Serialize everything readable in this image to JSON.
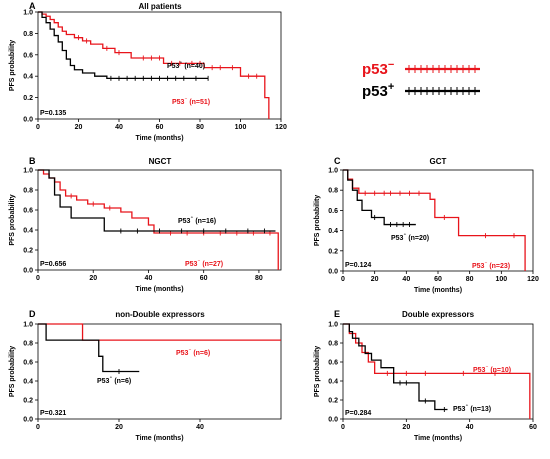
{
  "colors": {
    "neg": "#e8141b",
    "pos": "#000000",
    "axis": "#000000"
  },
  "legend": [
    {
      "label": "p53",
      "sup": "−",
      "color": "#e8141b"
    },
    {
      "label": "p53",
      "sup": "+",
      "color": "#000000"
    }
  ],
  "chart_data": [
    {
      "type": "line",
      "letter": "A",
      "title": "All patients",
      "xlabel": "Time (months)",
      "ylabel": "PFS probability",
      "xlim": [
        0,
        120
      ],
      "ylim": [
        0,
        1
      ],
      "xticks": [
        0,
        20,
        40,
        60,
        80,
        100,
        120
      ],
      "yticks": [
        0.0,
        0.2,
        0.4,
        0.6,
        0.8,
        1.0
      ],
      "pvalue": "P=0.135",
      "series": [
        {
          "name": "P53⁻ (n=51)",
          "sign": "−",
          "color": "#e8141b",
          "x": [
            0,
            2,
            4,
            6,
            8,
            10,
            12,
            14,
            18,
            22,
            26,
            32,
            38,
            46,
            62,
            82,
            100,
            112,
            114
          ],
          "y": [
            1.0,
            0.98,
            0.96,
            0.93,
            0.9,
            0.86,
            0.82,
            0.79,
            0.76,
            0.73,
            0.7,
            0.66,
            0.62,
            0.57,
            0.52,
            0.48,
            0.4,
            0.2,
            0.0
          ],
          "censor": [
            20,
            24,
            34,
            40,
            52,
            56,
            60,
            66,
            70,
            76,
            80,
            86,
            90,
            96,
            104,
            108
          ]
        },
        {
          "name": "P53⁺ (n=40)",
          "sign": "+",
          "color": "#000000",
          "x": [
            0,
            2,
            4,
            6,
            8,
            10,
            12,
            14,
            16,
            18,
            22,
            28,
            34
          ],
          "y": [
            1.0,
            0.95,
            0.9,
            0.84,
            0.78,
            0.72,
            0.64,
            0.56,
            0.5,
            0.46,
            0.43,
            0.4,
            0.38
          ],
          "censor": [
            36,
            40,
            44,
            48,
            52,
            56,
            60,
            64,
            68,
            72,
            78,
            84
          ],
          "end": 84
        }
      ]
    },
    {
      "type": "line",
      "letter": "B",
      "title": "NGCT",
      "xlabel": "Time (months)",
      "ylabel": "PFS probability",
      "xlim": [
        0,
        88
      ],
      "ylim": [
        0,
        1
      ],
      "xticks": [
        0,
        20,
        40,
        60,
        80
      ],
      "yticks": [
        0.0,
        0.2,
        0.4,
        0.6,
        0.8,
        1.0
      ],
      "pvalue": "P=0.656",
      "series": [
        {
          "name": "P53⁻ (n=27)",
          "sign": "−",
          "color": "#e8141b",
          "x": [
            0,
            2,
            4,
            6,
            8,
            10,
            14,
            18,
            24,
            30,
            34,
            40,
            42,
            87
          ],
          "y": [
            1.0,
            0.96,
            0.92,
            0.88,
            0.8,
            0.74,
            0.7,
            0.66,
            0.62,
            0.58,
            0.52,
            0.45,
            0.37,
            0.0
          ],
          "censor": [
            12,
            20,
            26,
            48,
            54,
            60,
            66,
            72,
            78,
            84
          ]
        },
        {
          "name": "P53⁺ (n=16)",
          "sign": "+",
          "color": "#000000",
          "x": [
            0,
            4,
            6,
            8,
            12,
            24
          ],
          "y": [
            1.0,
            0.92,
            0.75,
            0.63,
            0.52,
            0.39
          ],
          "censor": [
            30,
            36,
            44,
            52,
            60,
            68,
            76,
            82
          ],
          "end": 86
        }
      ]
    },
    {
      "type": "line",
      "letter": "C",
      "title": "GCT",
      "xlabel": "Time (months)",
      "ylabel": "PFS probability",
      "xlim": [
        0,
        120
      ],
      "ylim": [
        0,
        1
      ],
      "xticks": [
        0,
        20,
        40,
        60,
        80,
        100,
        120
      ],
      "yticks": [
        0.0,
        0.2,
        0.4,
        0.6,
        0.8,
        1.0
      ],
      "pvalue": "P=0.124",
      "series": [
        {
          "name": "P53⁻ (n=23)",
          "sign": "−",
          "color": "#e8141b",
          "x": [
            0,
            3,
            6,
            10,
            55,
            58,
            73,
            115
          ],
          "y": [
            1.0,
            0.91,
            0.82,
            0.77,
            0.71,
            0.53,
            0.35,
            0.0
          ],
          "censor": [
            14,
            20,
            26,
            30,
            36,
            42,
            48,
            64,
            90,
            108
          ]
        },
        {
          "name": "P53⁺ (n=20)",
          "sign": "+",
          "color": "#000000",
          "x": [
            0,
            3,
            6,
            9,
            12,
            18,
            26
          ],
          "y": [
            1.0,
            0.9,
            0.8,
            0.7,
            0.6,
            0.53,
            0.46
          ],
          "censor": [
            20,
            30,
            34,
            38,
            42
          ],
          "end": 46
        }
      ]
    },
    {
      "type": "line",
      "letter": "D",
      "title": "non-Double expressors",
      "xlabel": "Time (months)",
      "ylabel": "PFS probability",
      "xlim": [
        0,
        60
      ],
      "ylim": [
        0,
        1
      ],
      "xticks": [
        0,
        20,
        40
      ],
      "yticks": [
        0.0,
        0.2,
        0.4,
        0.6,
        0.8,
        1.0
      ],
      "pvalue": "P=0.321",
      "series": [
        {
          "name": "P53⁻ (n=6)",
          "sign": "−",
          "color": "#e8141b",
          "x": [
            0,
            11
          ],
          "y": [
            1.0,
            0.83
          ],
          "censor": [],
          "end": 60
        },
        {
          "name": "P53⁺ (n=6)",
          "sign": "+",
          "color": "#000000",
          "x": [
            0,
            2,
            15,
            16
          ],
          "y": [
            1.0,
            0.83,
            0.66,
            0.5
          ],
          "censor": [
            20
          ],
          "end": 25
        }
      ]
    },
    {
      "type": "line",
      "letter": "E",
      "title": "Double expressors",
      "xlabel": "Time (months)",
      "ylabel": "PFS probability",
      "xlim": [
        0,
        60
      ],
      "ylim": [
        0,
        1
      ],
      "xticks": [
        0,
        20,
        40,
        60
      ],
      "yticks": [
        0.0,
        0.2,
        0.4,
        0.6,
        0.8,
        1.0
      ],
      "pvalue": "P=0.284",
      "series": [
        {
          "name": "P53⁻ (n=10)",
          "sign": "−",
          "color": "#e8141b",
          "x": [
            0,
            2,
            4,
            6,
            8,
            10,
            59
          ],
          "y": [
            1.0,
            0.9,
            0.8,
            0.7,
            0.6,
            0.48,
            0.0
          ],
          "censor": [
            14,
            20,
            26,
            38,
            48
          ]
        },
        {
          "name": "P53⁺ (n=13)",
          "sign": "+",
          "color": "#000000",
          "x": [
            0,
            2,
            3,
            5,
            7,
            9,
            12,
            16,
            24,
            29
          ],
          "y": [
            1.0,
            0.92,
            0.85,
            0.77,
            0.69,
            0.62,
            0.54,
            0.38,
            0.19,
            0.1
          ],
          "censor": [
            18,
            20,
            26,
            32
          ],
          "end": 33
        }
      ]
    }
  ]
}
